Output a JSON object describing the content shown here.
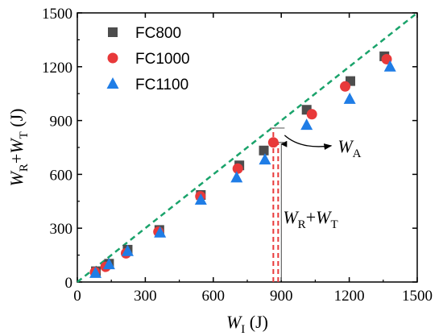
{
  "chart_data": {
    "type": "scatter",
    "xlabel": {
      "main": "W",
      "sub": "I",
      "unit": " (J)"
    },
    "ylabel": {
      "main1": "W",
      "sub1": "R",
      "plus": "+",
      "main2": "W",
      "sub2": "T",
      "unit": " (J)"
    },
    "xlim": [
      0,
      1500
    ],
    "ylim": [
      0,
      1500
    ],
    "xticks": [
      "0",
      "300",
      "600",
      "900",
      "1200",
      "1500"
    ],
    "yticks": [
      "0",
      "300",
      "600",
      "900",
      "1200",
      "1500"
    ],
    "grid": false,
    "legend_position": "top-left",
    "series": [
      {
        "name": "FC800",
        "marker": "square",
        "color": "#4d4d4d",
        "points": [
          [
            82,
            60
          ],
          [
            140,
            102
          ],
          [
            222,
            180
          ],
          [
            362,
            290
          ],
          [
            545,
            485
          ],
          [
            715,
            650
          ],
          [
            823,
            733
          ],
          [
            1012,
            960
          ],
          [
            1205,
            1120
          ],
          [
            1355,
            1258
          ]
        ]
      },
      {
        "name": "FC1000",
        "marker": "circle",
        "color": "#e8393a",
        "points": [
          [
            78,
            55
          ],
          [
            125,
            85
          ],
          [
            215,
            160
          ],
          [
            358,
            280
          ],
          [
            543,
            478
          ],
          [
            708,
            632
          ],
          [
            865,
            778
          ],
          [
            1035,
            935
          ],
          [
            1182,
            1090
          ],
          [
            1365,
            1242
          ]
        ]
      },
      {
        "name": "FC1100",
        "marker": "triangle",
        "color": "#1f7de6",
        "points": [
          [
            80,
            50
          ],
          [
            140,
            98
          ],
          [
            222,
            172
          ],
          [
            365,
            275
          ],
          [
            545,
            458
          ],
          [
            703,
            582
          ],
          [
            828,
            682
          ],
          [
            1012,
            875
          ],
          [
            1202,
            1020
          ],
          [
            1380,
            1200
          ]
        ]
      }
    ],
    "reference_line": {
      "style": "dashed",
      "color": "#1aa36b",
      "from": [
        0,
        0
      ],
      "to": [
        1500,
        1500
      ]
    },
    "annotations": {
      "wa": {
        "main": "W",
        "sub": "A"
      },
      "wrwt": {
        "main1": "W",
        "sub1": "R",
        "plus": "+",
        "main2": "W",
        "sub2": "T"
      },
      "marker_x": 865,
      "marker_y_top": 858,
      "marker_y_mid": 778,
      "vline_color": "#e8393a"
    }
  }
}
